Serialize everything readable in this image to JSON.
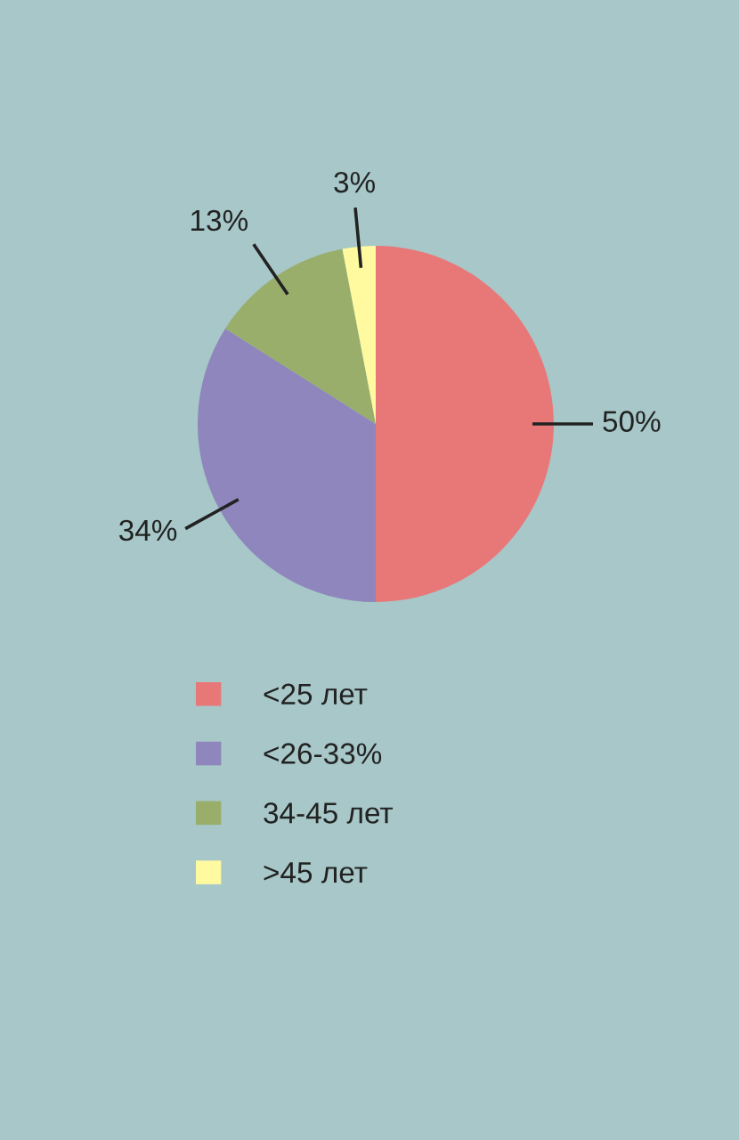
{
  "chart_data": {
    "type": "pie",
    "categories": [
      "<25 лет",
      "<26-33%",
      "34-45 лет",
      ">45 лет"
    ],
    "values": [
      50,
      34,
      13,
      3
    ],
    "colors": [
      "#e87878",
      "#8e86bc",
      "#9aae6c",
      "#fffaa0"
    ],
    "value_labels": [
      "50%",
      "34%",
      "13%",
      "3%"
    ],
    "legend": "bottom"
  }
}
